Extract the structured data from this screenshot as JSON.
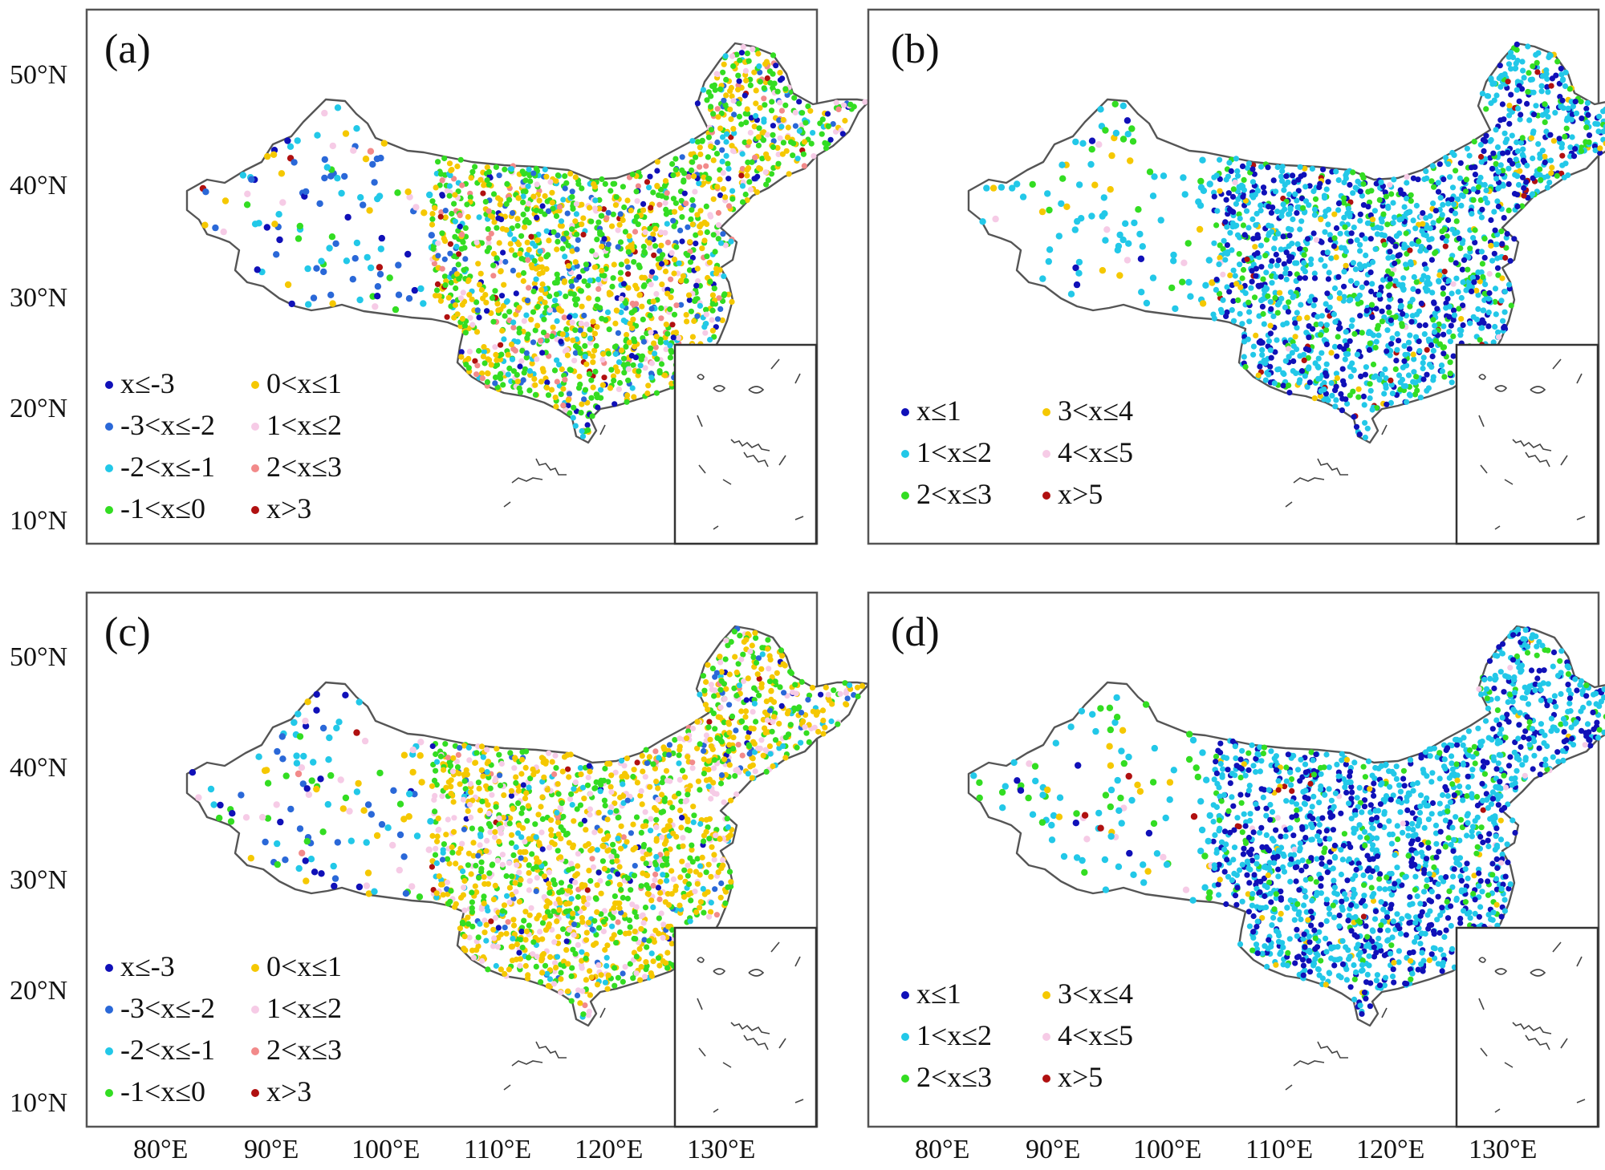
{
  "lat_ticks": [
    "50°N",
    "40°N",
    "30°N",
    "20°N",
    "10°N"
  ],
  "lon_ticks": [
    "80°E",
    "90°E",
    "100°E",
    "110°E",
    "120°E",
    "130°E"
  ],
  "panels": [
    {
      "id": "a",
      "label": "(a)",
      "scheme": "diverging",
      "legend": [
        {
          "text": "x≤-3",
          "color": "#1010b8"
        },
        {
          "text": "0<x≤1",
          "color": "#f5c800"
        },
        {
          "text": "-3<x≤-2",
          "color": "#2a68d8"
        },
        {
          "text": "1<x≤2",
          "color": "#f6cbe6"
        },
        {
          "text": "-2<x≤-1",
          "color": "#22c8e8"
        },
        {
          "text": "2<x≤3",
          "color": "#f28a8a"
        },
        {
          "text": "-1<x≤0",
          "color": "#33dd22"
        },
        {
          "text": "x>3",
          "color": "#b01010"
        }
      ]
    },
    {
      "id": "b",
      "label": "(b)",
      "scheme": "positive",
      "legend": [
        {
          "text": "x≤1",
          "color": "#1010b8"
        },
        {
          "text": "3<x≤4",
          "color": "#f5c800"
        },
        {
          "text": "1<x≤2",
          "color": "#22c8e8"
        },
        {
          "text": "4<x≤5",
          "color": "#f6cbe6"
        },
        {
          "text": "2<x≤3",
          "color": "#33dd22"
        },
        {
          "text": "x>5",
          "color": "#b01010"
        }
      ]
    },
    {
      "id": "c",
      "label": "(c)",
      "scheme": "diverging",
      "legend": [
        {
          "text": "x≤-3",
          "color": "#1010b8"
        },
        {
          "text": "0<x≤1",
          "color": "#f5c800"
        },
        {
          "text": "-3<x≤-2",
          "color": "#2a68d8"
        },
        {
          "text": "1<x≤2",
          "color": "#f6cbe6"
        },
        {
          "text": "-2<x≤-1",
          "color": "#22c8e8"
        },
        {
          "text": "2<x≤3",
          "color": "#f28a8a"
        },
        {
          "text": "-1<x≤0",
          "color": "#33dd22"
        },
        {
          "text": "x>3",
          "color": "#b01010"
        }
      ]
    },
    {
      "id": "d",
      "label": "(d)",
      "scheme": "positive",
      "legend": [
        {
          "text": "x≤1",
          "color": "#1010b8"
        },
        {
          "text": "3<x≤4",
          "color": "#f5c800"
        },
        {
          "text": "1<x≤2",
          "color": "#22c8e8"
        },
        {
          "text": "4<x≤5",
          "color": "#f6cbe6"
        },
        {
          "text": "2<x≤3",
          "color": "#33dd22"
        },
        {
          "text": "x>5",
          "color": "#b01010"
        }
      ]
    }
  ]
}
